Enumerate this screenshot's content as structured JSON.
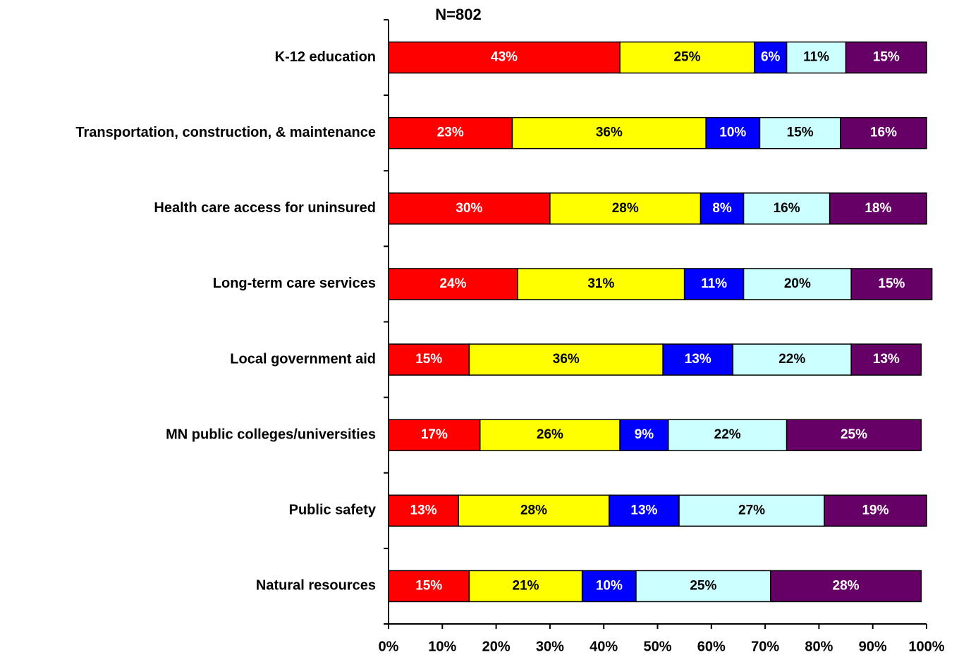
{
  "chart_data": {
    "type": "stacked_barh",
    "title": "N=802",
    "categories": [
      "K-12 education",
      "Transportation, construction, & maintenance",
      "Health care access for uninsured",
      "Long-term care services",
      "Local government aid",
      "MN public colleges/universities",
      "Public safety",
      "Natural resources"
    ],
    "series": [
      {
        "color": "#ff0000",
        "label_color": "#ffffff",
        "values": [
          43,
          23,
          30,
          24,
          15,
          17,
          13,
          15
        ],
        "value_labels": [
          "43%",
          "23%",
          "30%",
          "24%",
          "15%",
          "17%",
          "13%",
          "15%"
        ]
      },
      {
        "color": "#ffff00",
        "label_color": "#000000",
        "values": [
          25,
          36,
          28,
          31,
          36,
          26,
          28,
          21
        ],
        "value_labels": [
          "25%",
          "36%",
          "28%",
          "31%",
          "36%",
          "26%",
          "28%",
          "21%"
        ]
      },
      {
        "color": "#0000ff",
        "label_color": "#ffffff",
        "values": [
          6,
          10,
          8,
          11,
          13,
          9,
          13,
          10
        ],
        "value_labels": [
          "6%",
          "10%",
          "8%",
          "11%",
          "13%",
          "9%",
          "13%",
          "10%"
        ]
      },
      {
        "color": "#ccffff",
        "label_color": "#000000",
        "values": [
          11,
          15,
          16,
          20,
          22,
          22,
          27,
          25
        ],
        "value_labels": [
          "11%",
          "15%",
          "16%",
          "20%",
          "22%",
          "22%",
          "27%",
          "25%"
        ]
      },
      {
        "color": "#660066",
        "label_color": "#ffffff",
        "values": [
          15,
          16,
          18,
          15,
          13,
          25,
          19,
          28
        ],
        "value_labels": [
          "15%",
          "16%",
          "18%",
          "15%",
          "13%",
          "25%",
          "19%",
          "28%"
        ]
      }
    ],
    "xlim": [
      0,
      100
    ],
    "xticks": [
      {
        "value": 0,
        "label": "0%"
      },
      {
        "value": 10,
        "label": "10%"
      },
      {
        "value": 20,
        "label": "20%"
      },
      {
        "value": 30,
        "label": "30%"
      },
      {
        "value": 40,
        "label": "40%"
      },
      {
        "value": 50,
        "label": "50%"
      },
      {
        "value": 60,
        "label": "60%"
      },
      {
        "value": 70,
        "label": "70%"
      },
      {
        "value": 80,
        "label": "80%"
      },
      {
        "value": 90,
        "label": "90%"
      },
      {
        "value": 100,
        "label": "100%"
      }
    ]
  }
}
